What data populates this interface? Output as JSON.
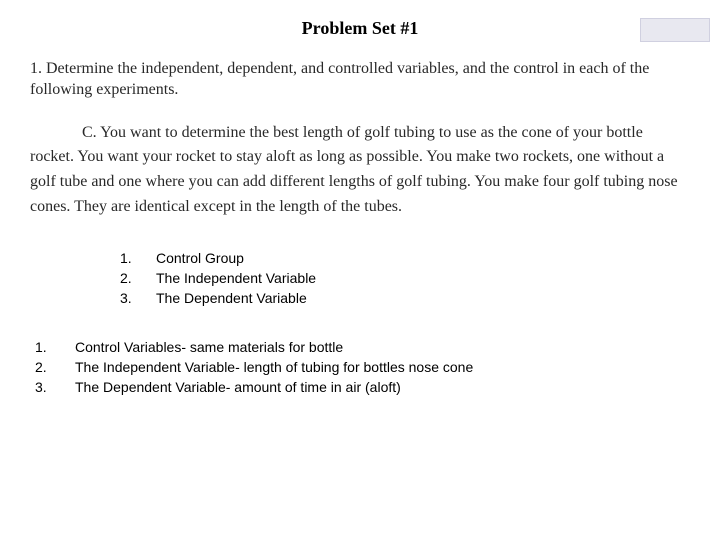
{
  "title": "Problem Set #1",
  "instruction": "1. Determine the independent, dependent, and controlled variables, and the control in each of the following experiments.",
  "problemC": "C. You want to determine the best length of golf tubing to use as the cone of your bottle rocket. You want your rocket to stay aloft as long as possible. You make two rockets, one without a golf tube and one where you can add different lengths of golf tubing. You make four golf tubing nose cones. They are identical except in the length of the tubes.",
  "blanks": [
    {
      "num": "1.",
      "label": "Control Group"
    },
    {
      "num": "2.",
      "label": "The Independent Variable"
    },
    {
      "num": "3.",
      "label": "The Dependent Variable"
    }
  ],
  "answers": [
    {
      "num": "1.",
      "label": "Control Variables- same materials for bottle"
    },
    {
      "num": "2.",
      "label": "The Independent Variable- length of tubing for bottles nose cone"
    },
    {
      "num": "3.",
      "label": "The Dependent Variable- amount of time in air (aloft)"
    }
  ],
  "colors": {
    "page_bg": "#ffffff",
    "scan_text": "#282828",
    "answer_text": "#000000",
    "corner_bg": "#e8e8f0"
  }
}
